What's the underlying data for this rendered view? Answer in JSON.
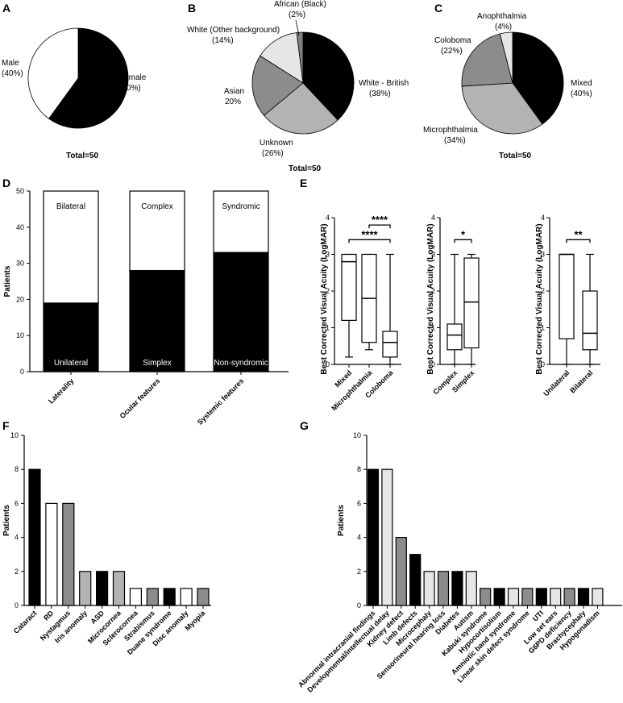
{
  "colors": {
    "black": "#000000",
    "white": "#ffffff",
    "light": "#e6e6e6",
    "mid": "#b3b3b3",
    "dark": "#8c8c8c",
    "darker": "#737373"
  },
  "chart_data": [
    {
      "panel": "A",
      "type": "pie",
      "total_label": "Total=50",
      "slices": [
        {
          "label_line1": "Female",
          "label_line2": "(60%)",
          "value": 60,
          "color": "#000000"
        },
        {
          "label_line1": "Male",
          "label_line2": "(40%)",
          "value": 40,
          "color": "#ffffff"
        }
      ]
    },
    {
      "panel": "B",
      "type": "pie",
      "total_label": "Total=50",
      "slices": [
        {
          "label_line1": "White - British",
          "label_line2": "(38%)",
          "value": 38,
          "color": "#000000"
        },
        {
          "label_line1": "Unknown",
          "label_line2": "(26%)",
          "value": 26,
          "color": "#b3b3b3"
        },
        {
          "label_line1": "Asian",
          "label_line2": "20%",
          "value": 20,
          "color": "#8c8c8c"
        },
        {
          "label_line1": "White (Other background)",
          "label_line2": "(14%)",
          "value": 14,
          "color": "#e6e6e6"
        },
        {
          "label_line1": "African (Black)",
          "label_line2": "(2%)",
          "value": 2,
          "color": "#808080"
        }
      ]
    },
    {
      "panel": "C",
      "type": "pie",
      "total_label": "Total=50",
      "slices": [
        {
          "label_line1": "Mixed",
          "label_line2": "(40%)",
          "value": 40,
          "color": "#000000"
        },
        {
          "label_line1": "Microphthalmia",
          "label_line2": "(34%)",
          "value": 34,
          "color": "#b3b3b3"
        },
        {
          "label_line1": "Coloboma",
          "label_line2": "(22%)",
          "value": 22,
          "color": "#8c8c8c"
        },
        {
          "label_line1": "Anophthalmia",
          "label_line2": "(4%)",
          "value": 4,
          "color": "#e6e6e6"
        }
      ]
    },
    {
      "panel": "D",
      "type": "bar",
      "ylabel": "Patients",
      "ylim": [
        0,
        50
      ],
      "yticks": [
        0,
        10,
        20,
        30,
        40,
        50
      ],
      "categories": [
        "Laterality",
        "Ocular features",
        "Systemic features"
      ],
      "series": [
        {
          "values": [
            19,
            28,
            33
          ],
          "color": "#000000"
        },
        {
          "values": [
            31,
            22,
            17
          ],
          "color": "#ffffff"
        }
      ],
      "top_labels": [
        "Bilateral",
        "Complex",
        "Syndromic"
      ],
      "bottom_labels": [
        "Unilateral",
        "Simplex",
        "Non-syndromic"
      ]
    },
    {
      "panel": "E",
      "type": "box",
      "ylabel": "Best Corrected Visual Acuity (LogMAR)",
      "ylim": [
        0,
        4
      ],
      "yticks": [
        0,
        1,
        2,
        3,
        4
      ],
      "groups": [
        {
          "categories": [
            "Mixed",
            "Microphthalmia",
            "Coloboma"
          ],
          "boxes": [
            {
              "min": 0.2,
              "q1": 1.2,
              "median": 2.8,
              "q3": 3.0,
              "max": 3.0
            },
            {
              "min": 0.4,
              "q1": 0.6,
              "median": 1.8,
              "q3": 3.0,
              "max": 3.0
            },
            {
              "min": 0.0,
              "q1": 0.2,
              "median": 0.6,
              "q3": 0.9,
              "max": 3.0
            }
          ],
          "sig": [
            {
              "from": 1,
              "to": 2,
              "y": 3.8,
              "label": "****"
            },
            {
              "from": 0,
              "to": 2,
              "y": 3.4,
              "label": "****"
            }
          ]
        },
        {
          "categories": [
            "Complex",
            "Simplex"
          ],
          "boxes": [
            {
              "min": 0.0,
              "q1": 0.4,
              "median": 0.8,
              "q3": 1.1,
              "max": 3.0
            },
            {
              "min": 0.0,
              "q1": 0.45,
              "median": 1.7,
              "q3": 2.9,
              "max": 3.0
            }
          ],
          "sig": [
            {
              "from": 0,
              "to": 1,
              "y": 3.4,
              "label": "*"
            }
          ]
        },
        {
          "categories": [
            "Unilateral",
            "Bilateral"
          ],
          "boxes": [
            {
              "min": 0.0,
              "q1": 0.7,
              "median": 3.0,
              "q3": 3.0,
              "max": 3.0
            },
            {
              "min": 0.0,
              "q1": 0.4,
              "median": 0.85,
              "q3": 2.0,
              "max": 3.0
            }
          ],
          "sig": [
            {
              "from": 0,
              "to": 1,
              "y": 3.4,
              "label": "**"
            }
          ]
        }
      ]
    },
    {
      "panel": "F",
      "type": "bar",
      "ylabel": "Patients",
      "ylim": [
        0,
        10
      ],
      "yticks": [
        0,
        2,
        4,
        6,
        8,
        10
      ],
      "categories": [
        "Cataract",
        "RD",
        "Nystagmus",
        "Iris anomaly",
        "ASD",
        "Microcornea",
        "Sclerocornea",
        "Strabismus",
        "Duane syndrome",
        "Disc anomaly",
        "Myopia"
      ],
      "values": [
        8,
        6,
        6,
        2,
        2,
        2,
        1,
        1,
        1,
        1,
        1
      ],
      "colors": [
        "#000000",
        "#ffffff",
        "#8c8c8c",
        "#b3b3b3",
        "#000000",
        "#b3b3b3",
        "#ffffff",
        "#8c8c8c",
        "#000000",
        "#ffffff",
        "#8c8c8c"
      ]
    },
    {
      "panel": "G",
      "type": "bar",
      "ylabel": "Patients",
      "ylim": [
        0,
        10
      ],
      "yticks": [
        0,
        2,
        4,
        6,
        8,
        10
      ],
      "categories": [
        "Abnormal intracranial findings",
        "Developmental/intellectual delay",
        "Kidney defect",
        "Limb defects",
        "Microcephaly",
        "Sensorineural hearing loss",
        "Diabetes",
        "Autism",
        "Kabuki syndrome",
        "Hypocortisolism",
        "Amniotic band syndrome",
        "Linear skin defect syndrome",
        "UTI",
        "Low set ears",
        "G6PD deficiency",
        "Brachycephaly",
        "Hypogonadism"
      ],
      "values": [
        8,
        8,
        4,
        3,
        2,
        2,
        2,
        2,
        1,
        1,
        1,
        1,
        1,
        1,
        1,
        1,
        1
      ],
      "colors": [
        "#000000",
        "#e6e6e6",
        "#8c8c8c",
        "#000000",
        "#e6e6e6",
        "#8c8c8c",
        "#000000",
        "#e6e6e6",
        "#8c8c8c",
        "#000000",
        "#e6e6e6",
        "#8c8c8c",
        "#000000",
        "#e6e6e6",
        "#8c8c8c",
        "#000000",
        "#e6e6e6"
      ]
    }
  ]
}
